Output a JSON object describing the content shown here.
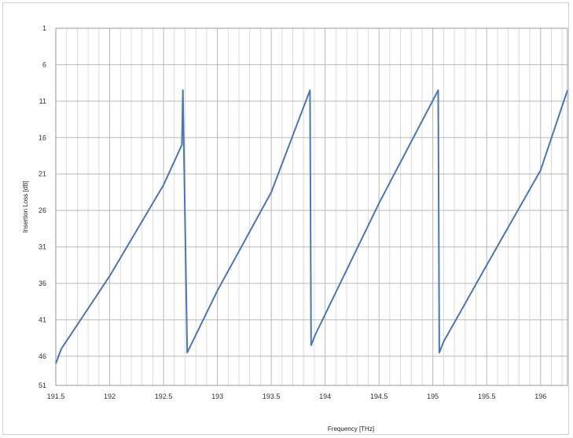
{
  "chart_data": {
    "type": "line",
    "title": "",
    "xlabel": "Frequency [THz]",
    "ylabel": "Insertion Loss [dB]",
    "xlim": [
      191.5,
      196.25
    ],
    "ylim": [
      1,
      50
    ],
    "y_inverted": true,
    "grid": true,
    "x_ticks": [
      "191.5",
      "192",
      "192.5",
      "193",
      "193.5",
      "194",
      "194.5",
      "195",
      "195.5",
      "196"
    ],
    "y_ticks": [
      "1",
      "6",
      "11",
      "16",
      "21",
      "26",
      "31",
      "36",
      "41",
      "46",
      "51"
    ],
    "series": [
      {
        "color": "#4a76b5",
        "x": [
          191.5,
          191.55,
          192.0,
          192.5,
          192.67,
          192.68,
          192.72,
          193.0,
          193.5,
          193.86,
          193.87,
          193.91,
          194.5,
          195.05,
          195.06,
          195.1,
          195.5,
          196.0,
          196.25
        ],
        "y": [
          47.0,
          45.0,
          35.0,
          22.5,
          17.0,
          9.5,
          45.5,
          37.0,
          23.5,
          9.5,
          44.5,
          43.0,
          25.0,
          9.5,
          45.5,
          44.0,
          33.5,
          20.5,
          9.5
        ]
      }
    ]
  }
}
